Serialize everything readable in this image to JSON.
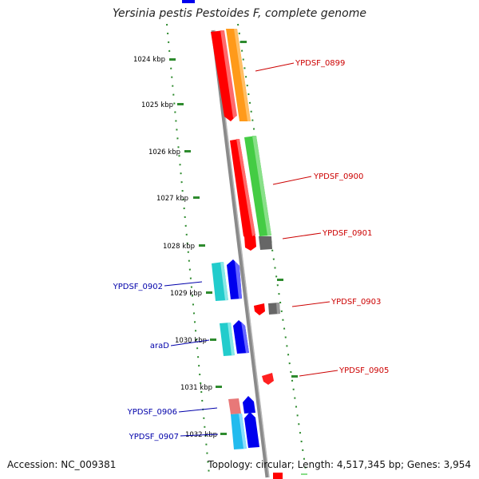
{
  "title": "Yersinia pestis Pestoides F, complete genome",
  "footer": {
    "accession": "Accession: NC_009381",
    "summary": "Topology: circular; Length: 4,517,345 bp; Genes: 3,954"
  },
  "colors": {
    "backbone": "#8a8a8a",
    "tick": "#2e8b2e",
    "forward_label": "#cc0000",
    "reverse_label": "#0000aa"
  },
  "ticks": [
    "1024 kbp",
    "1025 kbp",
    "1026 kbp",
    "1027 kbp",
    "1028 kbp",
    "1029 kbp",
    "1030 kbp",
    "1031 kbp",
    "1032 kbp"
  ],
  "genes": [
    {
      "label": "YPDSF_0899",
      "strand": "forward",
      "color": "#ff9a1a"
    },
    {
      "label": "YPDSF_0900",
      "strand": "forward",
      "color": "#44cc44"
    },
    {
      "label": "YPDSF_0901",
      "strand": "forward",
      "color": "#666666"
    },
    {
      "label": "YPDSF_0903",
      "strand": "forward",
      "color": "#666666"
    },
    {
      "label": "YPDSF_0905",
      "strand": "forward",
      "color": "#ff2020"
    },
    {
      "label": "YPDSF_0902",
      "strand": "reverse",
      "color": "#0000ee"
    },
    {
      "label": "araD",
      "strand": "reverse",
      "color": "#0000ee"
    },
    {
      "label": "YPDSF_0906",
      "strand": "reverse",
      "color": "#0000ee"
    },
    {
      "label": "YPDSF_0907",
      "strand": "reverse",
      "color": "#0000ee"
    }
  ]
}
